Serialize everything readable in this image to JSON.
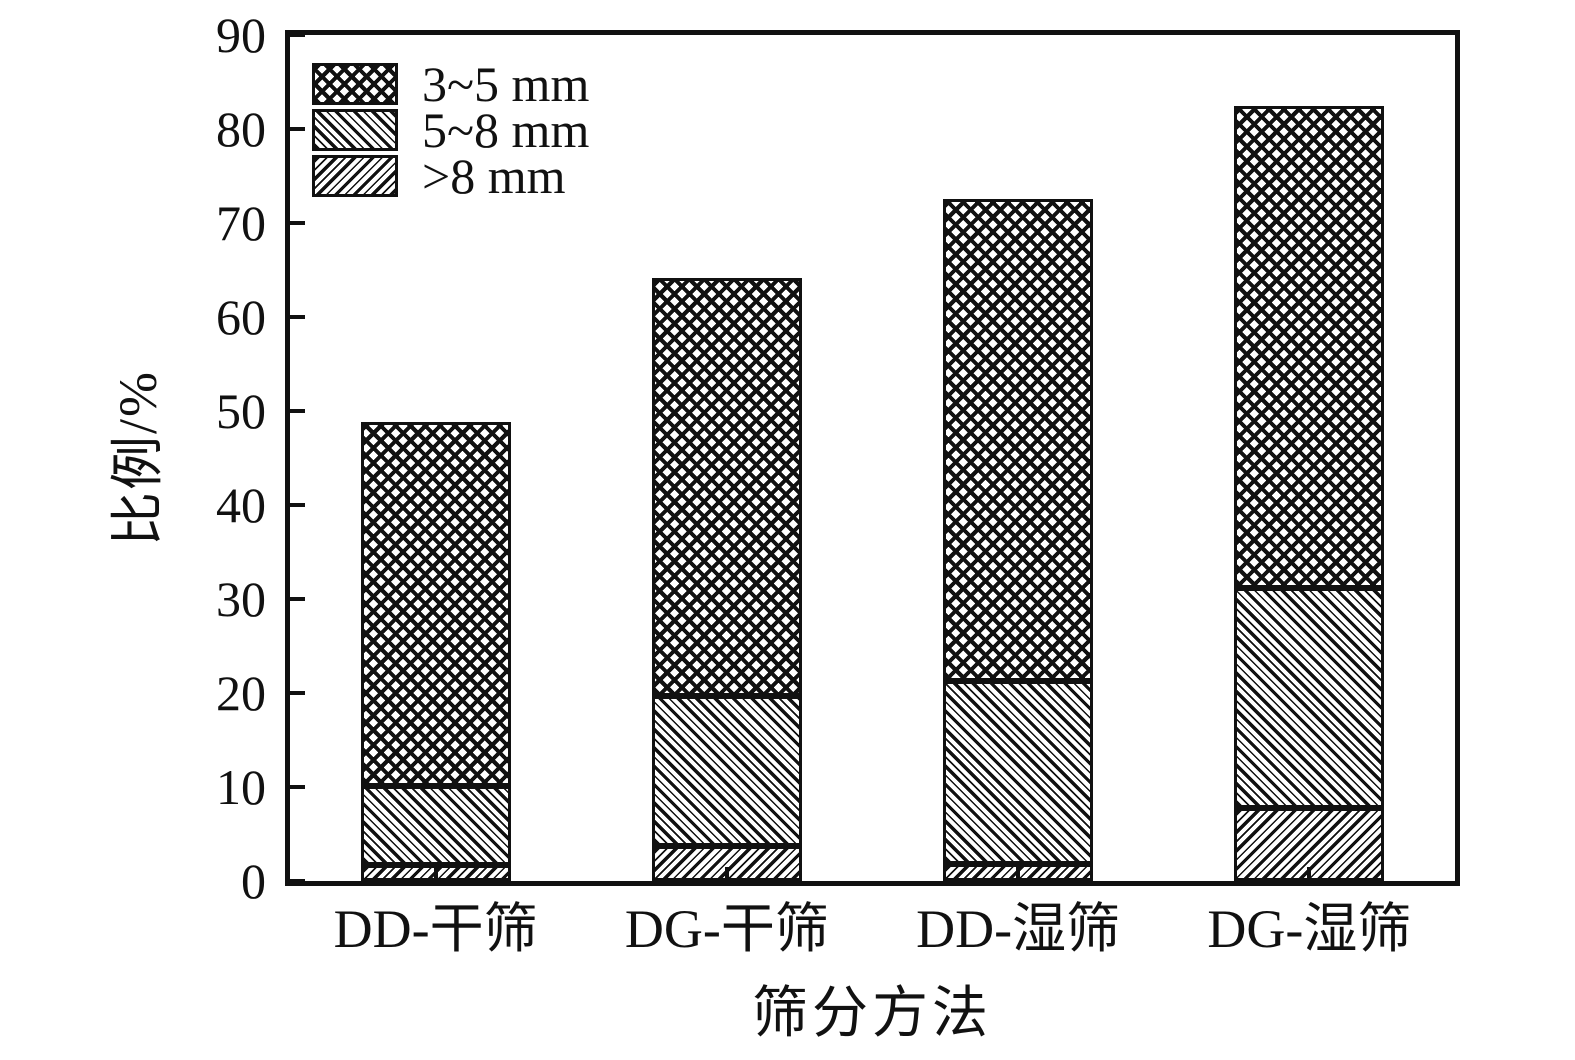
{
  "colors": {
    "ink": "#111111",
    "background": "#ffffff"
  },
  "chart_data": {
    "type": "bar",
    "stacked": true,
    "title": "",
    "xlabel": "筛分方法",
    "ylabel": "比例/%",
    "categories": [
      "DD-干筛",
      "DG-干筛",
      "DD-湿筛",
      "DG-湿筛"
    ],
    "series": [
      {
        "name": "3~5 mm",
        "pattern": "crosshatch",
        "values": [
          38.7,
          44.5,
          51.3,
          51.3
        ]
      },
      {
        "name": "5~8 mm",
        "pattern": "diagonal-backslash",
        "values": [
          8.4,
          16.0,
          19.5,
          23.4
        ]
      },
      {
        "name": ">8 mm",
        "pattern": "diagonal-slash",
        "values": [
          1.7,
          3.7,
          1.8,
          7.8
        ]
      }
    ],
    "stack_order_bottom_to_top": [
      ">8 mm",
      "5~8 mm",
      "3~5 mm"
    ],
    "totals": [
      48.8,
      64.2,
      72.6,
      82.5
    ],
    "ylim": [
      0,
      90
    ],
    "ytick_step": 10,
    "ytick_labels": [
      "0",
      "10",
      "20",
      "30",
      "40",
      "50",
      "60",
      "70",
      "80",
      "90"
    ],
    "grid": false,
    "legend_position": "top-left"
  }
}
